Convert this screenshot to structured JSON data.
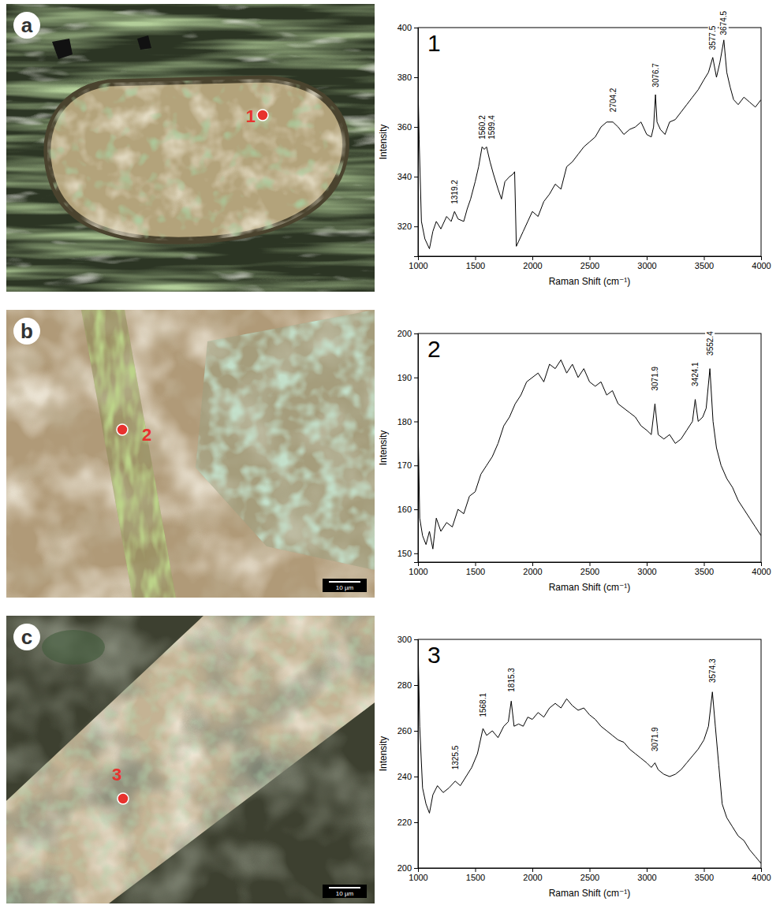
{
  "images": [
    {
      "letter": "a",
      "spot": "1"
    },
    {
      "letter": "b",
      "spot": "2",
      "scale_bar": "10 µm"
    },
    {
      "letter": "c",
      "spot": "3",
      "scale_bar": "10 µm"
    }
  ],
  "chart_data": [
    {
      "type": "line",
      "title": "1",
      "xlabel": "Raman Shift (cm⁻¹)",
      "ylabel": "Intensity",
      "color": "#000000",
      "xlim": [
        1000,
        4000
      ],
      "xticks": [
        1000,
        1500,
        2000,
        2500,
        3000,
        3500,
        4000
      ],
      "ylim": [
        308,
        400
      ],
      "yticks": [
        320,
        340,
        360,
        380,
        400
      ],
      "x": [
        1000,
        1010,
        1030,
        1060,
        1100,
        1130,
        1160,
        1200,
        1250,
        1290,
        1319.2,
        1350,
        1400,
        1430,
        1460,
        1500,
        1530,
        1560.2,
        1580,
        1599.4,
        1630,
        1660,
        1700,
        1730,
        1760,
        1800,
        1830,
        1845,
        1860,
        1880,
        1920,
        1960,
        2000,
        2050,
        2100,
        2150,
        2200,
        2250,
        2300,
        2350,
        2400,
        2450,
        2500,
        2550,
        2600,
        2650,
        2704.2,
        2750,
        2800,
        2850,
        2900,
        2950,
        3000,
        3040,
        3060,
        3076.7,
        3090,
        3120,
        3160,
        3200,
        3250,
        3300,
        3350,
        3400,
        3450,
        3500,
        3540,
        3577.5,
        3610,
        3640,
        3674.5,
        3700,
        3730,
        3760,
        3800,
        3850,
        3900,
        3950,
        4000
      ],
      "values": [
        378,
        355,
        322,
        315,
        311,
        318,
        322,
        319,
        324,
        322,
        326,
        323,
        322,
        327,
        331,
        338,
        344,
        352,
        351,
        352,
        346,
        341,
        335,
        331,
        338,
        340,
        341,
        342,
        312,
        314,
        318,
        322,
        326,
        324,
        330,
        333,
        337,
        335,
        344,
        346,
        349,
        352,
        354,
        356,
        360,
        362,
        362,
        360,
        357,
        359,
        360,
        362,
        357,
        356,
        360,
        373,
        362,
        359,
        357,
        362,
        363,
        366,
        369,
        372,
        375,
        379,
        382,
        388,
        380,
        386,
        395,
        382,
        376,
        371,
        369,
        372,
        370,
        368,
        371
      ],
      "annotations": [
        {
          "x": 1319.2,
          "y": 329,
          "text": "1319.2"
        },
        {
          "x": 1560.2,
          "y": 355,
          "text": "1560.2"
        },
        {
          "x": 1599.4,
          "y": 355,
          "text": "1599.4"
        },
        {
          "x": 2704.2,
          "y": 366,
          "text": "2704.2"
        },
        {
          "x": 3076.7,
          "y": 376,
          "text": "3076.7"
        },
        {
          "x": 3577.5,
          "y": 391,
          "text": "3577.5"
        },
        {
          "x": 3674.5,
          "y": 397,
          "text": "3674.5"
        }
      ]
    },
    {
      "type": "line",
      "title": "2",
      "xlabel": "Raman Shift (cm⁻¹)",
      "ylabel": "Intensity",
      "color": "#000000",
      "xlim": [
        1000,
        4000
      ],
      "xticks": [
        1000,
        1500,
        2000,
        2500,
        3000,
        3500,
        4000
      ],
      "ylim": [
        148,
        200
      ],
      "yticks": [
        150,
        160,
        170,
        180,
        190,
        200
      ],
      "x": [
        1000,
        1015,
        1040,
        1070,
        1100,
        1130,
        1160,
        1200,
        1250,
        1300,
        1350,
        1400,
        1450,
        1500,
        1550,
        1600,
        1650,
        1700,
        1750,
        1800,
        1850,
        1900,
        1950,
        2000,
        2050,
        2100,
        2150,
        2200,
        2250,
        2300,
        2350,
        2400,
        2450,
        2500,
        2550,
        2600,
        2650,
        2700,
        2750,
        2800,
        2850,
        2900,
        2950,
        3000,
        3040,
        3071.9,
        3100,
        3150,
        3200,
        3250,
        3300,
        3350,
        3400,
        3424.1,
        3450,
        3490,
        3520,
        3552.4,
        3580,
        3610,
        3650,
        3700,
        3750,
        3800,
        3850,
        3900,
        3950,
        4000
      ],
      "values": [
        180,
        158,
        154,
        152,
        155,
        151,
        158,
        155,
        157,
        156,
        160,
        159,
        163,
        164,
        168,
        170,
        172,
        175,
        179,
        181,
        184,
        186,
        189,
        190,
        191,
        189,
        193,
        192,
        194,
        191,
        193,
        190,
        192,
        189,
        188,
        189,
        186,
        187,
        184,
        183,
        182,
        181,
        179,
        178,
        177,
        184,
        177,
        176,
        177,
        175,
        176,
        178,
        180,
        185,
        180,
        181,
        183,
        192,
        180,
        174,
        170,
        167,
        165,
        162,
        160,
        158,
        156,
        154
      ],
      "annotations": [
        {
          "x": 3071.9,
          "y": 187,
          "text": "3071.9"
        },
        {
          "x": 3424.1,
          "y": 188,
          "text": "3424.1"
        },
        {
          "x": 3552.4,
          "y": 195,
          "text": "3552.4"
        }
      ]
    },
    {
      "type": "line",
      "title": "3",
      "xlabel": "Raman Shift (cm⁻¹)",
      "ylabel": "Intensity",
      "color": "#000000",
      "xlim": [
        1000,
        4000
      ],
      "xticks": [
        1000,
        1500,
        2000,
        2500,
        3000,
        3500,
        4000
      ],
      "ylim": [
        200,
        300
      ],
      "yticks": [
        200,
        220,
        240,
        260,
        280,
        300
      ],
      "x": [
        1000,
        1015,
        1040,
        1070,
        1100,
        1130,
        1170,
        1220,
        1270,
        1325.5,
        1370,
        1420,
        1470,
        1520,
        1568.1,
        1600,
        1650,
        1700,
        1750,
        1790,
        1815.3,
        1840,
        1880,
        1920,
        1960,
        2000,
        2050,
        2100,
        2150,
        2200,
        2250,
        2300,
        2350,
        2400,
        2450,
        2500,
        2550,
        2600,
        2650,
        2700,
        2750,
        2800,
        2850,
        2900,
        2950,
        3000,
        3040,
        3071.9,
        3100,
        3150,
        3200,
        3250,
        3300,
        3350,
        3400,
        3450,
        3500,
        3540,
        3574.3,
        3600,
        3630,
        3660,
        3700,
        3750,
        3800,
        3850,
        3900,
        3950,
        4000
      ],
      "values": [
        298,
        262,
        235,
        228,
        224,
        232,
        236,
        233,
        235,
        238,
        236,
        240,
        244,
        250,
        261,
        258,
        260,
        257,
        262,
        264,
        273,
        262,
        263,
        262,
        266,
        265,
        268,
        266,
        270,
        272,
        270,
        274,
        271,
        269,
        270,
        267,
        265,
        262,
        260,
        258,
        256,
        255,
        252,
        250,
        248,
        246,
        244,
        246,
        243,
        241,
        240,
        241,
        243,
        246,
        249,
        252,
        256,
        262,
        277,
        262,
        245,
        228,
        222,
        218,
        214,
        212,
        208,
        205,
        202
      ],
      "annotations": [
        {
          "x": 1325.5,
          "y": 243,
          "text": "1325.5"
        },
        {
          "x": 1568.1,
          "y": 266,
          "text": "1568.1"
        },
        {
          "x": 1815.3,
          "y": 277,
          "text": "1815.3"
        },
        {
          "x": 3071.9,
          "y": 251,
          "text": "3071.9"
        },
        {
          "x": 3574.3,
          "y": 281,
          "text": "3574.3"
        }
      ]
    }
  ]
}
